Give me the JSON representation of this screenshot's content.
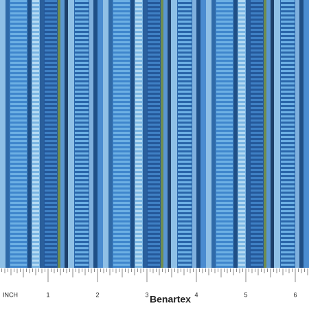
{
  "ruler": {
    "unit_label": "INCH",
    "labels": [
      "1",
      "2",
      "3",
      "4",
      "5",
      "6"
    ]
  },
  "brand": "Benartex"
}
